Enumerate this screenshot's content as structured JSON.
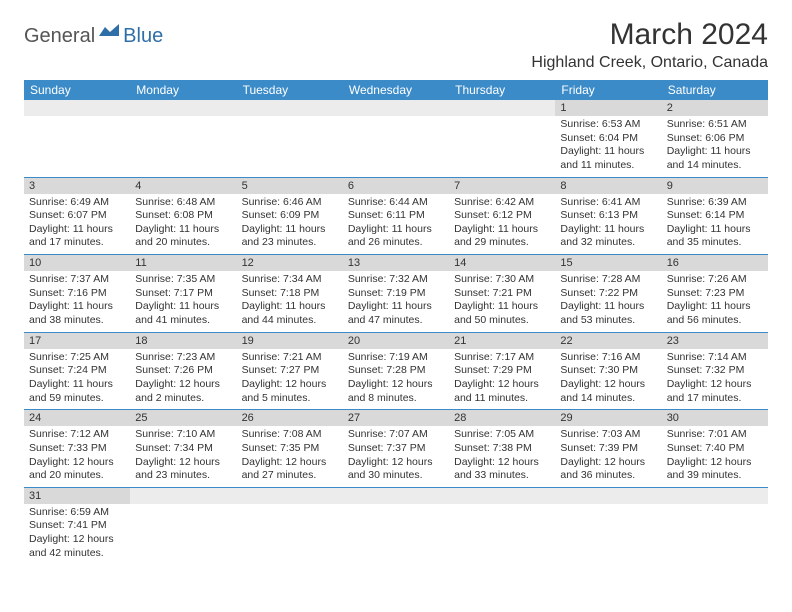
{
  "logo": {
    "text1": "General",
    "text2": "Blue"
  },
  "title": "March 2024",
  "location": "Highland Creek, Ontario, Canada",
  "colors": {
    "header_bg": "#3b8bc9",
    "header_fg": "#ffffff",
    "daynum_bg": "#d9d9d9",
    "row_border": "#3b8bc9",
    "logo_gray": "#555555",
    "logo_blue": "#2f6fa8"
  },
  "day_headers": [
    "Sunday",
    "Monday",
    "Tuesday",
    "Wednesday",
    "Thursday",
    "Friday",
    "Saturday"
  ],
  "weeks": [
    [
      null,
      null,
      null,
      null,
      null,
      {
        "n": "1",
        "sr": "Sunrise: 6:53 AM",
        "ss": "Sunset: 6:04 PM",
        "d1": "Daylight: 11 hours",
        "d2": "and 11 minutes."
      },
      {
        "n": "2",
        "sr": "Sunrise: 6:51 AM",
        "ss": "Sunset: 6:06 PM",
        "d1": "Daylight: 11 hours",
        "d2": "and 14 minutes."
      }
    ],
    [
      {
        "n": "3",
        "sr": "Sunrise: 6:49 AM",
        "ss": "Sunset: 6:07 PM",
        "d1": "Daylight: 11 hours",
        "d2": "and 17 minutes."
      },
      {
        "n": "4",
        "sr": "Sunrise: 6:48 AM",
        "ss": "Sunset: 6:08 PM",
        "d1": "Daylight: 11 hours",
        "d2": "and 20 minutes."
      },
      {
        "n": "5",
        "sr": "Sunrise: 6:46 AM",
        "ss": "Sunset: 6:09 PM",
        "d1": "Daylight: 11 hours",
        "d2": "and 23 minutes."
      },
      {
        "n": "6",
        "sr": "Sunrise: 6:44 AM",
        "ss": "Sunset: 6:11 PM",
        "d1": "Daylight: 11 hours",
        "d2": "and 26 minutes."
      },
      {
        "n": "7",
        "sr": "Sunrise: 6:42 AM",
        "ss": "Sunset: 6:12 PM",
        "d1": "Daylight: 11 hours",
        "d2": "and 29 minutes."
      },
      {
        "n": "8",
        "sr": "Sunrise: 6:41 AM",
        "ss": "Sunset: 6:13 PM",
        "d1": "Daylight: 11 hours",
        "d2": "and 32 minutes."
      },
      {
        "n": "9",
        "sr": "Sunrise: 6:39 AM",
        "ss": "Sunset: 6:14 PM",
        "d1": "Daylight: 11 hours",
        "d2": "and 35 minutes."
      }
    ],
    [
      {
        "n": "10",
        "sr": "Sunrise: 7:37 AM",
        "ss": "Sunset: 7:16 PM",
        "d1": "Daylight: 11 hours",
        "d2": "and 38 minutes."
      },
      {
        "n": "11",
        "sr": "Sunrise: 7:35 AM",
        "ss": "Sunset: 7:17 PM",
        "d1": "Daylight: 11 hours",
        "d2": "and 41 minutes."
      },
      {
        "n": "12",
        "sr": "Sunrise: 7:34 AM",
        "ss": "Sunset: 7:18 PM",
        "d1": "Daylight: 11 hours",
        "d2": "and 44 minutes."
      },
      {
        "n": "13",
        "sr": "Sunrise: 7:32 AM",
        "ss": "Sunset: 7:19 PM",
        "d1": "Daylight: 11 hours",
        "d2": "and 47 minutes."
      },
      {
        "n": "14",
        "sr": "Sunrise: 7:30 AM",
        "ss": "Sunset: 7:21 PM",
        "d1": "Daylight: 11 hours",
        "d2": "and 50 minutes."
      },
      {
        "n": "15",
        "sr": "Sunrise: 7:28 AM",
        "ss": "Sunset: 7:22 PM",
        "d1": "Daylight: 11 hours",
        "d2": "and 53 minutes."
      },
      {
        "n": "16",
        "sr": "Sunrise: 7:26 AM",
        "ss": "Sunset: 7:23 PM",
        "d1": "Daylight: 11 hours",
        "d2": "and 56 minutes."
      }
    ],
    [
      {
        "n": "17",
        "sr": "Sunrise: 7:25 AM",
        "ss": "Sunset: 7:24 PM",
        "d1": "Daylight: 11 hours",
        "d2": "and 59 minutes."
      },
      {
        "n": "18",
        "sr": "Sunrise: 7:23 AM",
        "ss": "Sunset: 7:26 PM",
        "d1": "Daylight: 12 hours",
        "d2": "and 2 minutes."
      },
      {
        "n": "19",
        "sr": "Sunrise: 7:21 AM",
        "ss": "Sunset: 7:27 PM",
        "d1": "Daylight: 12 hours",
        "d2": "and 5 minutes."
      },
      {
        "n": "20",
        "sr": "Sunrise: 7:19 AM",
        "ss": "Sunset: 7:28 PM",
        "d1": "Daylight: 12 hours",
        "d2": "and 8 minutes."
      },
      {
        "n": "21",
        "sr": "Sunrise: 7:17 AM",
        "ss": "Sunset: 7:29 PM",
        "d1": "Daylight: 12 hours",
        "d2": "and 11 minutes."
      },
      {
        "n": "22",
        "sr": "Sunrise: 7:16 AM",
        "ss": "Sunset: 7:30 PM",
        "d1": "Daylight: 12 hours",
        "d2": "and 14 minutes."
      },
      {
        "n": "23",
        "sr": "Sunrise: 7:14 AM",
        "ss": "Sunset: 7:32 PM",
        "d1": "Daylight: 12 hours",
        "d2": "and 17 minutes."
      }
    ],
    [
      {
        "n": "24",
        "sr": "Sunrise: 7:12 AM",
        "ss": "Sunset: 7:33 PM",
        "d1": "Daylight: 12 hours",
        "d2": "and 20 minutes."
      },
      {
        "n": "25",
        "sr": "Sunrise: 7:10 AM",
        "ss": "Sunset: 7:34 PM",
        "d1": "Daylight: 12 hours",
        "d2": "and 23 minutes."
      },
      {
        "n": "26",
        "sr": "Sunrise: 7:08 AM",
        "ss": "Sunset: 7:35 PM",
        "d1": "Daylight: 12 hours",
        "d2": "and 27 minutes."
      },
      {
        "n": "27",
        "sr": "Sunrise: 7:07 AM",
        "ss": "Sunset: 7:37 PM",
        "d1": "Daylight: 12 hours",
        "d2": "and 30 minutes."
      },
      {
        "n": "28",
        "sr": "Sunrise: 7:05 AM",
        "ss": "Sunset: 7:38 PM",
        "d1": "Daylight: 12 hours",
        "d2": "and 33 minutes."
      },
      {
        "n": "29",
        "sr": "Sunrise: 7:03 AM",
        "ss": "Sunset: 7:39 PM",
        "d1": "Daylight: 12 hours",
        "d2": "and 36 minutes."
      },
      {
        "n": "30",
        "sr": "Sunrise: 7:01 AM",
        "ss": "Sunset: 7:40 PM",
        "d1": "Daylight: 12 hours",
        "d2": "and 39 minutes."
      }
    ],
    [
      {
        "n": "31",
        "sr": "Sunrise: 6:59 AM",
        "ss": "Sunset: 7:41 PM",
        "d1": "Daylight: 12 hours",
        "d2": "and 42 minutes."
      },
      null,
      null,
      null,
      null,
      null,
      null
    ]
  ]
}
